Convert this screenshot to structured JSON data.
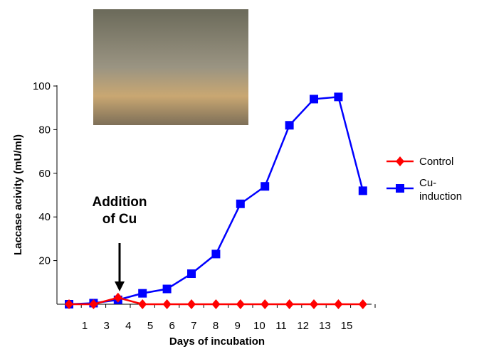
{
  "chart_data": {
    "type": "line",
    "y_label": "Laccase acivity (mU/ml)",
    "x_label": "Days of incubation",
    "annotation": "Addition of Cu",
    "x_labels": [
      "1",
      "3",
      "4",
      "5",
      "6",
      "7",
      "8",
      "9",
      "10",
      "11",
      "12",
      "13",
      "15"
    ],
    "categories": [
      null,
      null,
      null,
      null,
      null,
      null,
      null,
      null,
      null,
      null,
      null,
      null,
      null
    ],
    "series": [
      {
        "name": "Control",
        "color": "#ff0000",
        "marker": "diamond",
        "values": [
          0,
          0,
          3,
          0,
          0,
          0,
          0,
          0,
          0,
          0,
          0,
          0,
          0
        ]
      },
      {
        "name": "Cu-induction",
        "color": "#0000ff",
        "marker": "square",
        "values": [
          0,
          0.5,
          2,
          5,
          7,
          14,
          23,
          46,
          54,
          82,
          94,
          95,
          52
        ]
      }
    ],
    "ylim": [
      0,
      100
    ],
    "yticks": [
      20,
      40,
      60,
      80,
      100
    ],
    "legend": "right"
  }
}
